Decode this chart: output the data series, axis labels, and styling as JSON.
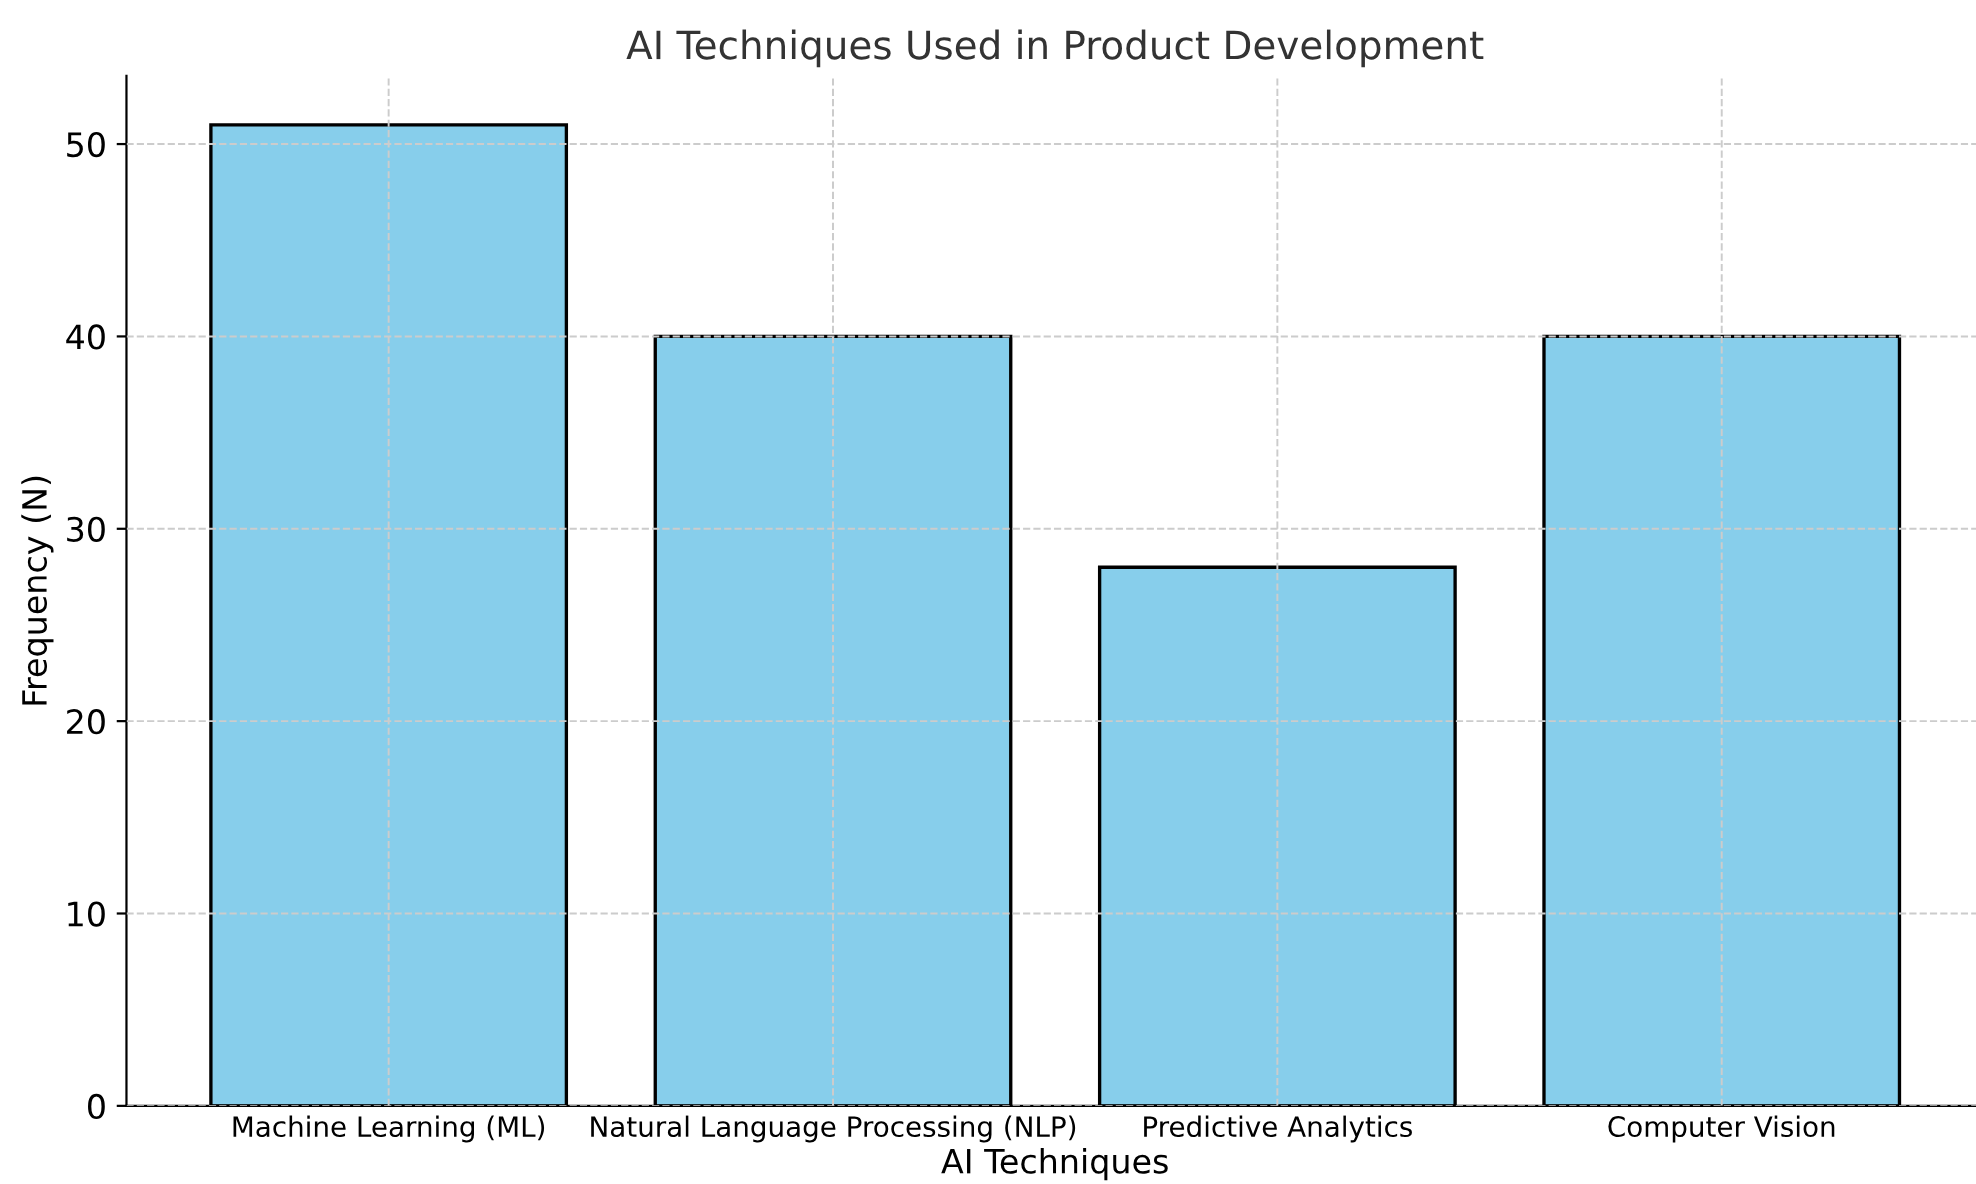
{
  "chart_data": {
    "type": "bar",
    "title": "AI Techniques Used in Product Development",
    "xlabel": "AI Techniques",
    "ylabel": "Frequency (N)",
    "categories": [
      "Machine Learning (ML)",
      "Natural Language Processing (NLP)",
      "Predictive Analytics",
      "Computer Vision"
    ],
    "values": [
      51,
      40,
      28,
      40
    ],
    "color": "#87ceeb",
    "ylim": [
      0,
      53.55
    ],
    "yticks": [
      0,
      10,
      20,
      30,
      40,
      50
    ],
    "grid": true,
    "line_style": "dashed"
  }
}
